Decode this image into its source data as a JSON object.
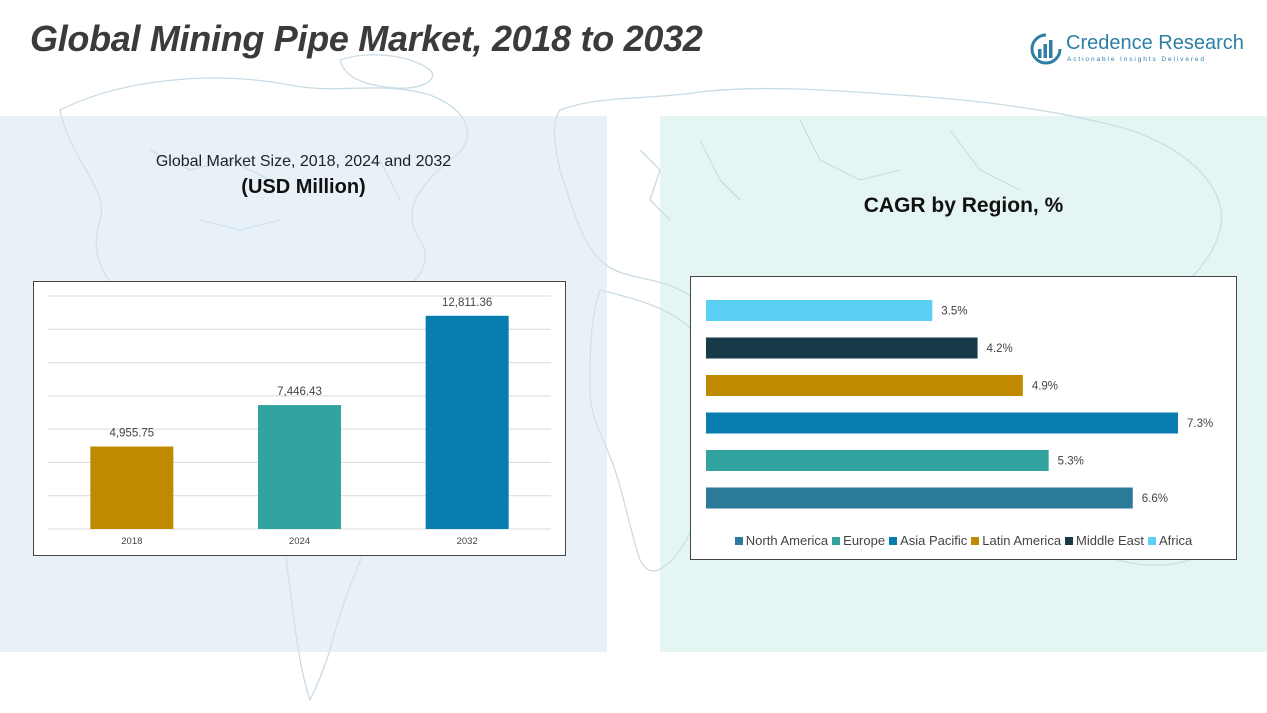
{
  "page": {
    "title": "Global Mining Pipe Market, 2018 to 2032"
  },
  "logo": {
    "name": "Credence Research",
    "tagline": "Actionable Insights Delivered",
    "icon": "bar-chart-circle-icon",
    "color": "#2d7fa6"
  },
  "left_panel": {
    "subtitle": "Global Market Size, 2018, 2024 and 2032",
    "unit": "(USD Million)"
  },
  "right_panel": {
    "title": "CAGR by Region, %"
  },
  "chart_data": [
    {
      "type": "bar",
      "title": "Global Market Size, 2018, 2024 and 2032",
      "ylabel": "(USD Million)",
      "categories": [
        "2018",
        "2024",
        "2032"
      ],
      "values": [
        4955.75,
        7446.43,
        12811.36
      ],
      "value_labels": [
        "4,955.75",
        "7,446.43",
        "12,811.36"
      ],
      "colors": [
        "#c08a00",
        "#33a3a0",
        "#0a7db0"
      ],
      "ylim": [
        0,
        14000
      ],
      "grid": true,
      "legend": "none"
    },
    {
      "type": "bar",
      "orientation": "horizontal",
      "title": "CAGR by Region, %",
      "categories": [
        "Africa",
        "Middle East",
        "Latin America",
        "Asia Pacific",
        "Europe",
        "North America"
      ],
      "values": [
        3.5,
        4.2,
        4.9,
        7.3,
        5.3,
        6.6
      ],
      "value_labels": [
        "3.5%",
        "4.2%",
        "4.9%",
        "7.3%",
        "5.3%",
        "6.6%"
      ],
      "colors": [
        "#5ccff5",
        "#17394a",
        "#c08a00",
        "#0a7db0",
        "#33a3a0",
        "#2c7a99"
      ],
      "xlim": [
        0,
        7.3
      ],
      "grid": false,
      "legend": "bottom",
      "legend_entries": [
        {
          "name": "North America",
          "color": "#2c7a99"
        },
        {
          "name": "Europe",
          "color": "#33a3a0"
        },
        {
          "name": "Asia Pacific",
          "color": "#0a7db0"
        },
        {
          "name": "Latin America",
          "color": "#c08a00"
        },
        {
          "name": "Middle East",
          "color": "#17394a"
        },
        {
          "name": "Africa",
          "color": "#5ccff5"
        }
      ]
    }
  ]
}
